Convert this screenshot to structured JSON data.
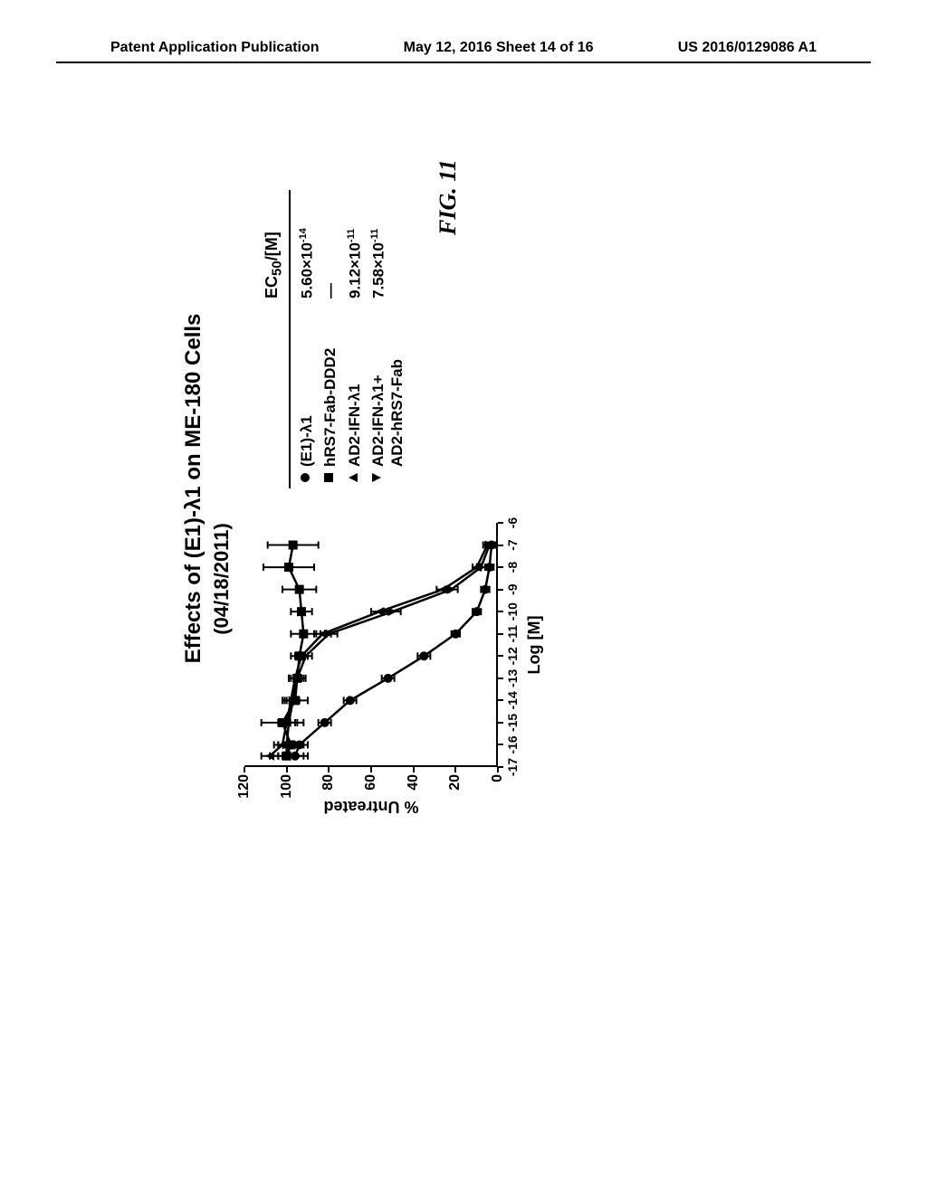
{
  "header": {
    "left": "Patent Application Publication",
    "center": "May 12, 2016  Sheet 14 of 16",
    "right": "US 2016/0129086 A1"
  },
  "figure_label": "FIG. 11",
  "chart": {
    "type": "line",
    "title": "Effects of (E1)-λ1 on ME-180 Cells",
    "subtitle": "(04/18/2011)",
    "x_axis": {
      "title": "Log [M]",
      "min": -17,
      "max": -6,
      "ticks": [
        -17,
        -16,
        -15,
        -14,
        -13,
        -12,
        -11,
        -10,
        -9,
        -8,
        -7,
        -6
      ]
    },
    "y_axis": {
      "title": "% Untreated",
      "min": 0,
      "max": 120,
      "ticks": [
        0,
        20,
        40,
        60,
        80,
        100,
        120
      ]
    },
    "background_color": "#ffffff",
    "line_color": "#000000",
    "marker_color": "#000000",
    "line_width": 2.5,
    "marker_size": 5,
    "error_cap": 4,
    "series": [
      {
        "name": "(E1)-λ1",
        "marker": "circle",
        "ec50": "5.60×10⁻¹⁴",
        "ec50_html": "5.60&times;10<sup>-14</sup>",
        "points": [
          {
            "x": -16.5,
            "y": 96,
            "e": 6
          },
          {
            "x": -16,
            "y": 94,
            "e": 4
          },
          {
            "x": -15,
            "y": 82,
            "e": 3
          },
          {
            "x": -14,
            "y": 70,
            "e": 3
          },
          {
            "x": -13,
            "y": 52,
            "e": 3
          },
          {
            "x": -12,
            "y": 35,
            "e": 3
          },
          {
            "x": -11,
            "y": 20,
            "e": 2
          },
          {
            "x": -10,
            "y": 10,
            "e": 2
          },
          {
            "x": -9,
            "y": 6,
            "e": 2
          },
          {
            "x": -8,
            "y": 4,
            "e": 2
          },
          {
            "x": -7,
            "y": 3,
            "e": 2
          }
        ]
      },
      {
        "name": "hRS7-Fab-DDD2",
        "marker": "square",
        "ec50": "—",
        "ec50_html": "&mdash;",
        "points": [
          {
            "x": -16.5,
            "y": 100,
            "e": 8
          },
          {
            "x": -16,
            "y": 98,
            "e": 6
          },
          {
            "x": -15,
            "y": 102,
            "e": 10
          },
          {
            "x": -14,
            "y": 96,
            "e": 6
          },
          {
            "x": -13,
            "y": 95,
            "e": 4
          },
          {
            "x": -12,
            "y": 94,
            "e": 4
          },
          {
            "x": -11,
            "y": 92,
            "e": 6
          },
          {
            "x": -10,
            "y": 93,
            "e": 5
          },
          {
            "x": -9,
            "y": 94,
            "e": 8
          },
          {
            "x": -8,
            "y": 99,
            "e": 12
          },
          {
            "x": -7,
            "y": 97,
            "e": 12
          }
        ]
      },
      {
        "name": "AD2-IFN-λ1",
        "marker": "uptri",
        "ec50": "9.12×10⁻¹¹",
        "ec50_html": "9.12&times;10<sup>-11</sup>",
        "points": [
          {
            "x": -16.5,
            "y": 108,
            "e": 4
          },
          {
            "x": -16,
            "y": 102,
            "e": 4
          },
          {
            "x": -15,
            "y": 100,
            "e": 4
          },
          {
            "x": -14,
            "y": 98,
            "e": 3
          },
          {
            "x": -13,
            "y": 96,
            "e": 3
          },
          {
            "x": -12,
            "y": 93,
            "e": 3
          },
          {
            "x": -11,
            "y": 83,
            "e": 4
          },
          {
            "x": -10,
            "y": 56,
            "e": 4
          },
          {
            "x": -9,
            "y": 26,
            "e": 3
          },
          {
            "x": -8,
            "y": 10,
            "e": 2
          },
          {
            "x": -7,
            "y": 5,
            "e": 2
          }
        ]
      },
      {
        "name": "AD2-IFN-λ1+\nAD2-hRS7-Fab",
        "marker": "dntri",
        "ec50": "7.58×10⁻¹¹",
        "ec50_html": "7.58&times;10<sup>-11</sup>",
        "points": [
          {
            "x": -16.5,
            "y": 100,
            "e": 4
          },
          {
            "x": -16,
            "y": 100,
            "e": 4
          },
          {
            "x": -15,
            "y": 99,
            "e": 4
          },
          {
            "x": -14,
            "y": 97,
            "e": 3
          },
          {
            "x": -13,
            "y": 95,
            "e": 3
          },
          {
            "x": -12,
            "y": 91,
            "e": 3
          },
          {
            "x": -11,
            "y": 80,
            "e": 4
          },
          {
            "x": -10,
            "y": 50,
            "e": 4
          },
          {
            "x": -9,
            "y": 22,
            "e": 3
          },
          {
            "x": -8,
            "y": 8,
            "e": 2
          },
          {
            "x": -7,
            "y": 4,
            "e": 2
          }
        ]
      }
    ],
    "legend_header": "EC₅₀/[M]",
    "legend_header_html": "EC<sub>50</sub>/[M]"
  }
}
